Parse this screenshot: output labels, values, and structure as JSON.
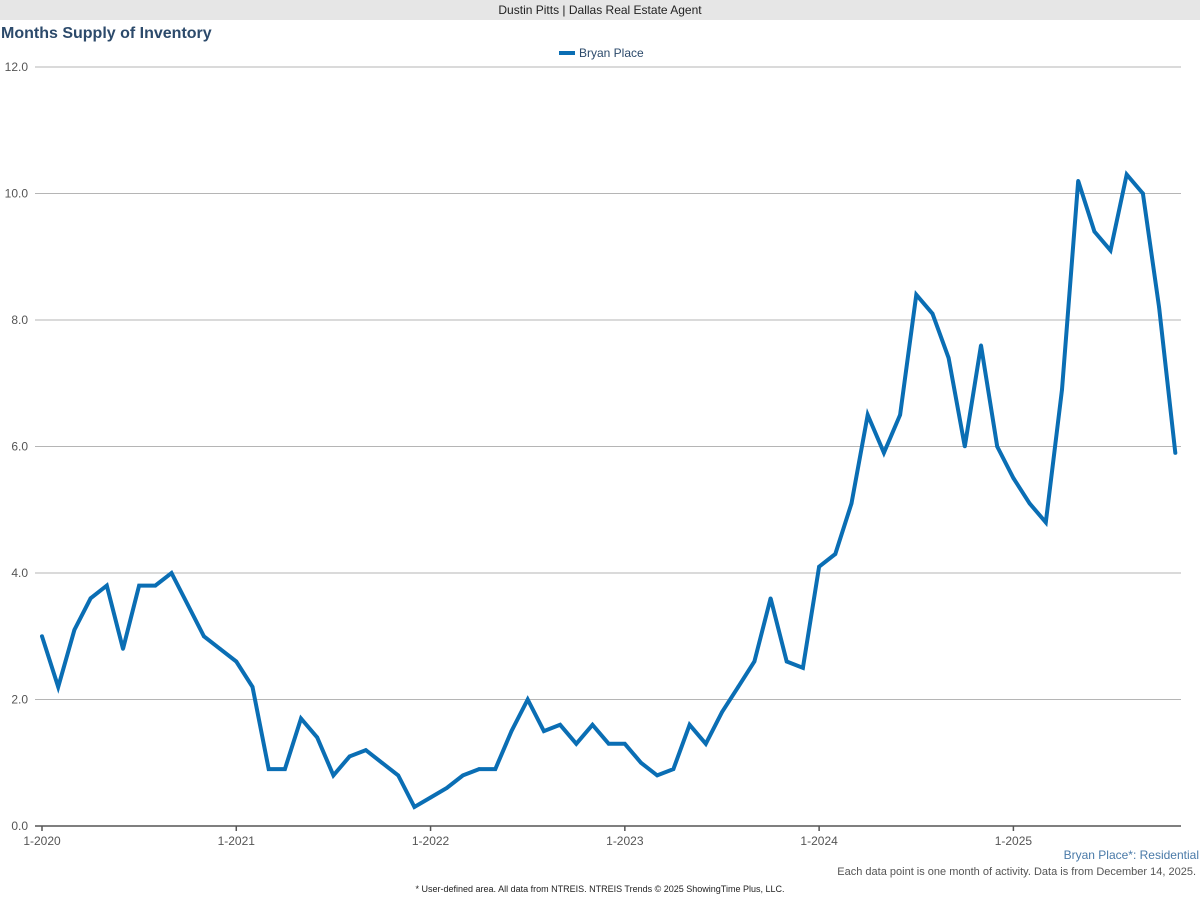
{
  "header": {
    "agent": "Dustin Pitts | Dallas Real Estate Agent"
  },
  "colors": {
    "series": "#0a6eb4",
    "grid": "#b5b5b5",
    "title": "#2c4a6b"
  },
  "chart_data": {
    "type": "line",
    "title": "Months Supply of Inventory",
    "xlabel": "",
    "ylabel": "",
    "ylim": [
      0,
      12
    ],
    "y_ticks": [
      "0.0",
      "2.0",
      "4.0",
      "6.0",
      "8.0",
      "10.0",
      "12.0"
    ],
    "x_ticks": [
      "1-2020",
      "1-2021",
      "1-2022",
      "1-2023",
      "1-2024",
      "1-2025"
    ],
    "grid": true,
    "legend_position": "top-center",
    "x_start": "1-2020",
    "x_step": "1 month",
    "series": [
      {
        "name": "Bryan Place",
        "values": [
          3.0,
          2.2,
          3.1,
          3.6,
          3.8,
          2.8,
          3.8,
          3.8,
          4.0,
          3.5,
          3.0,
          2.8,
          2.6,
          2.2,
          0.9,
          0.9,
          1.7,
          1.4,
          0.8,
          1.1,
          1.2,
          1.0,
          0.8,
          0.3,
          0.45,
          0.6,
          0.8,
          0.9,
          0.9,
          1.5,
          2.0,
          1.5,
          1.6,
          1.3,
          1.6,
          1.3,
          1.3,
          1.0,
          0.8,
          0.9,
          1.6,
          1.3,
          1.8,
          2.2,
          2.6,
          3.6,
          2.6,
          2.5,
          4.1,
          4.3,
          5.1,
          6.5,
          5.9,
          6.5,
          8.4,
          8.1,
          7.4,
          6.0,
          7.6,
          6.0,
          5.5,
          5.1,
          4.8,
          6.9,
          10.2,
          9.4,
          9.1,
          10.3,
          10.0,
          8.2,
          5.9
        ]
      }
    ]
  },
  "footer": {
    "series_label": "Bryan Place*: Residential",
    "note": "Each data point is one month of activity. Data is from December 14, 2025.",
    "credit": "* User-defined area. All data from NTREIS. NTREIS Trends © 2025 ShowingTime Plus, LLC."
  }
}
